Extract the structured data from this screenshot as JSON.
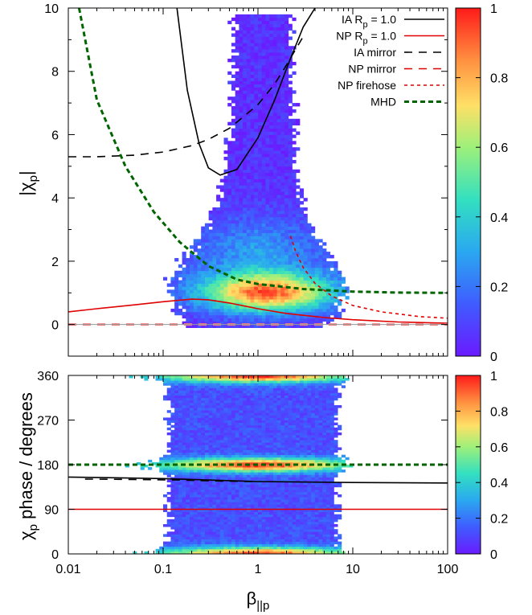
{
  "chart_data": [
    {
      "type": "heatmap",
      "panel": "top",
      "ylabel": "|χp|",
      "xlabel": "",
      "xscale": "log",
      "xlim": [
        0.01,
        100
      ],
      "ylim": [
        -1,
        10
      ],
      "x_ticks": [
        "",
        "",
        "",
        "",
        ""
      ],
      "y_ticks": [
        "0",
        "2",
        "4",
        "6",
        "8",
        "10"
      ],
      "colorbar_ticks": [
        "0",
        "0.2",
        "0.4",
        "0.6",
        "0.8",
        "1"
      ],
      "colorbar_range": [
        0,
        1
      ],
      "legend_position": "top-right",
      "series": [
        {
          "name": "IA Rp = 1.0",
          "color": "#000000",
          "dash": "solid",
          "x": [
            0.14,
            0.18,
            0.24,
            0.3,
            0.4,
            0.6,
            1.0,
            1.5,
            2.2,
            3.0,
            4.0
          ],
          "y": [
            10.0,
            7.4,
            5.7,
            4.95,
            4.72,
            4.9,
            5.9,
            7.1,
            8.4,
            9.4,
            10.0
          ]
        },
        {
          "name": "NP Rp = 1.0",
          "color": "#e00000",
          "dash": "solid",
          "x": [
            0.01,
            0.02,
            0.05,
            0.1,
            0.2,
            0.3,
            0.5,
            1,
            2,
            5,
            10,
            30,
            100
          ],
          "y": [
            0.4,
            0.5,
            0.62,
            0.72,
            0.8,
            0.78,
            0.68,
            0.5,
            0.35,
            0.22,
            0.15,
            0.08,
            0.04
          ]
        },
        {
          "name": "IA mirror",
          "color": "#000000",
          "dash": "long",
          "x": [
            0.01,
            0.02,
            0.05,
            0.1,
            0.2,
            0.3,
            0.5,
            1.0,
            1.5,
            2.0,
            3.0
          ],
          "y": [
            5.3,
            5.3,
            5.35,
            5.45,
            5.65,
            5.85,
            6.2,
            6.95,
            7.6,
            8.2,
            9.1
          ]
        },
        {
          "name": "NP mirror",
          "color": "#e00000",
          "dash": "long",
          "x": [
            0.01,
            100
          ],
          "y": [
            0.0,
            0.0
          ]
        },
        {
          "name": "NP firehose",
          "color": "#e00000",
          "dash": "short",
          "x": [
            2.2,
            2.5,
            3.0,
            4.0,
            6.0,
            10,
            20,
            50,
            100
          ],
          "y": [
            2.8,
            2.3,
            1.8,
            1.3,
            0.9,
            0.6,
            0.4,
            0.25,
            0.2
          ]
        },
        {
          "name": "MHD",
          "color": "#006400",
          "dash": "medium",
          "x": [
            0.013,
            0.02,
            0.04,
            0.08,
            0.15,
            0.3,
            0.6,
            1,
            3,
            10,
            30,
            100
          ],
          "y": [
            10.0,
            7.1,
            5.0,
            3.55,
            2.6,
            1.85,
            1.42,
            1.28,
            1.12,
            1.04,
            1.01,
            1.0
          ]
        }
      ]
    },
    {
      "type": "heatmap",
      "panel": "bottom",
      "ylabel": "χp phase / degrees",
      "xlabel": "β||p",
      "xscale": "log",
      "xlim": [
        0.01,
        100
      ],
      "ylim": [
        0,
        360
      ],
      "x_ticks": [
        "0.01",
        "0.1",
        "1",
        "10",
        "100"
      ],
      "y_ticks": [
        "0",
        "90",
        "180",
        "270",
        "360"
      ],
      "colorbar_ticks": [
        "0",
        "0.2",
        "0.4",
        "0.6",
        "0.8",
        "1"
      ],
      "colorbar_range": [
        0,
        1
      ],
      "series": [
        {
          "name": "IA Rp = 1.0",
          "color": "#000000",
          "dash": "solid",
          "x": [
            0.01,
            0.1,
            0.3,
            1,
            3,
            10,
            100
          ],
          "y": [
            155,
            152,
            149,
            146,
            145,
            144,
            143
          ]
        },
        {
          "name": "NP Rp = 1.0",
          "color": "#e00000",
          "dash": "solid",
          "x": [
            0.01,
            100
          ],
          "y": [
            90,
            90
          ]
        },
        {
          "name": "IA mirror",
          "color": "#000000",
          "dash": "long",
          "x": [
            0.015,
            0.05,
            0.15,
            0.4,
            1
          ],
          "y": [
            151,
            150,
            149,
            147,
            146
          ]
        },
        {
          "name": "MHD",
          "color": "#006400",
          "dash": "medium",
          "x": [
            0.01,
            100
          ],
          "y": [
            180,
            180
          ]
        }
      ]
    }
  ]
}
